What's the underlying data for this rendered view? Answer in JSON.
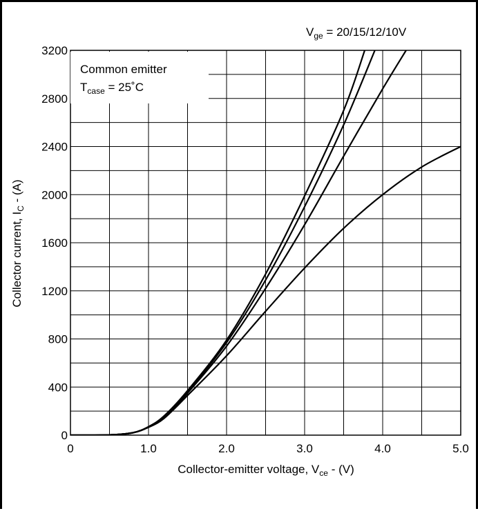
{
  "chart_data": {
    "type": "line",
    "title": "",
    "xlabel": {
      "main": "Collector-emitter voltage, V",
      "sub": "ce",
      "tail": " - (V)"
    },
    "ylabel": {
      "main": "Collector current, I",
      "sub": "C",
      "tail": " - (A)"
    },
    "xlim": [
      0,
      5.0
    ],
    "ylim": [
      0,
      3200
    ],
    "xticks": [
      "0",
      "1.0",
      "2.0",
      "3.0",
      "4.0",
      "5.0"
    ],
    "yticks": [
      "0",
      "400",
      "800",
      "1200",
      "1600",
      "2000",
      "2400",
      "2800",
      "3200"
    ],
    "xtick_values": [
      0,
      1,
      2,
      3,
      4,
      5
    ],
    "ytick_values": [
      0,
      400,
      800,
      1200,
      1600,
      2000,
      2400,
      2800,
      3200
    ],
    "grid": true,
    "annotation_box": {
      "line1": "Common emitter",
      "line2_main": "T",
      "line2_sub": "case",
      "line2_tail": " = 25˚C"
    },
    "series_label": {
      "main": "V",
      "sub": "ge",
      "tail": " = 20/15/12/10V"
    },
    "series": [
      {
        "values": [
          [
            0,
            0
          ],
          [
            0.5,
            2
          ],
          [
            0.8,
            20
          ],
          [
            1.0,
            70
          ],
          [
            1.2,
            160
          ],
          [
            1.5,
            370
          ],
          [
            2.0,
            790
          ],
          [
            2.5,
            1340
          ],
          [
            3.0,
            1990
          ],
          [
            3.5,
            2700
          ],
          [
            3.77,
            3200
          ]
        ]
      },
      {
        "values": [
          [
            0,
            0
          ],
          [
            0.5,
            2
          ],
          [
            0.8,
            20
          ],
          [
            1.0,
            70
          ],
          [
            1.2,
            155
          ],
          [
            1.5,
            360
          ],
          [
            2.0,
            770
          ],
          [
            2.5,
            1290
          ],
          [
            3.0,
            1900
          ],
          [
            3.5,
            2580
          ],
          [
            3.9,
            3200
          ]
        ]
      },
      {
        "values": [
          [
            0,
            0
          ],
          [
            0.5,
            2
          ],
          [
            0.8,
            20
          ],
          [
            1.0,
            68
          ],
          [
            1.2,
            150
          ],
          [
            1.5,
            350
          ],
          [
            2.0,
            740
          ],
          [
            2.5,
            1220
          ],
          [
            3.0,
            1750
          ],
          [
            3.5,
            2320
          ],
          [
            4.0,
            2880
          ],
          [
            4.3,
            3200
          ]
        ]
      },
      {
        "values": [
          [
            0,
            0
          ],
          [
            0.5,
            2
          ],
          [
            0.8,
            20
          ],
          [
            1.0,
            65
          ],
          [
            1.2,
            140
          ],
          [
            1.5,
            330
          ],
          [
            2.0,
            660
          ],
          [
            2.5,
            1030
          ],
          [
            3.0,
            1390
          ],
          [
            3.5,
            1720
          ],
          [
            4.0,
            2000
          ],
          [
            4.5,
            2230
          ],
          [
            5.0,
            2400
          ]
        ]
      }
    ]
  }
}
